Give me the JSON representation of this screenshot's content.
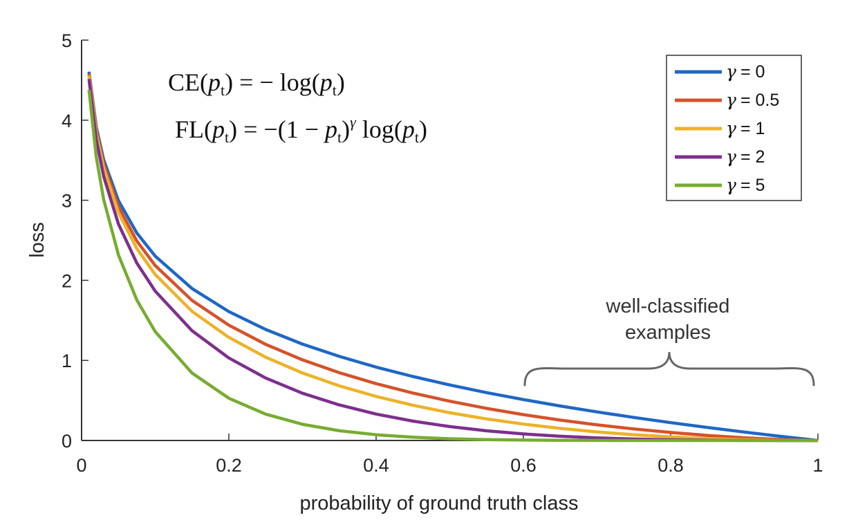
{
  "chart_data": {
    "type": "line",
    "title": "",
    "xlabel": "probability of ground truth class",
    "ylabel": "loss",
    "xlim": [
      0,
      1
    ],
    "ylim": [
      0,
      5
    ],
    "x_ticks": [
      0,
      0.2,
      0.4,
      0.6,
      0.8,
      1
    ],
    "x_tick_labels": [
      "0",
      "0.2",
      "0.4",
      "0.6",
      "0.8",
      "1"
    ],
    "y_ticks": [
      0,
      1,
      2,
      3,
      4,
      5
    ],
    "y_tick_labels": [
      "0",
      "1",
      "2",
      "3",
      "4",
      "5"
    ],
    "legend_position": "top-right",
    "legend_symbol": "γ",
    "series": [
      {
        "name": "γ = 0",
        "label": "= 0",
        "gamma": 0,
        "color": "#1f67c4"
      },
      {
        "name": "γ = 0.5",
        "label": "= 0.5",
        "gamma": 0.5,
        "color": "#d5522a"
      },
      {
        "name": "γ = 1",
        "label": "= 1",
        "gamma": 1,
        "color": "#edb228"
      },
      {
        "name": "γ = 2",
        "label": "= 2",
        "gamma": 2,
        "color": "#7e2f8e"
      },
      {
        "name": "γ = 5",
        "label": "= 5",
        "gamma": 5,
        "color": "#77ac30"
      }
    ],
    "x": [
      0.01,
      0.02,
      0.03,
      0.05,
      0.075,
      0.1,
      0.15,
      0.2,
      0.25,
      0.3,
      0.35,
      0.4,
      0.45,
      0.5,
      0.55,
      0.6,
      0.65,
      0.7,
      0.75,
      0.8,
      0.85,
      0.9,
      0.95,
      1.0
    ],
    "formulas": {
      "ce": {
        "lhs": "CE",
        "rhs": "= − log"
      },
      "fl": {
        "lhs": "FL",
        "rhs_a": "= −(1 −",
        "exp": "γ",
        "rhs_b": "log"
      },
      "p": "p",
      "sub": "t"
    },
    "annotation": {
      "lines": [
        "well-classified",
        "examples"
      ],
      "x_range": [
        0.6,
        1.0
      ],
      "color": "#666666"
    }
  }
}
